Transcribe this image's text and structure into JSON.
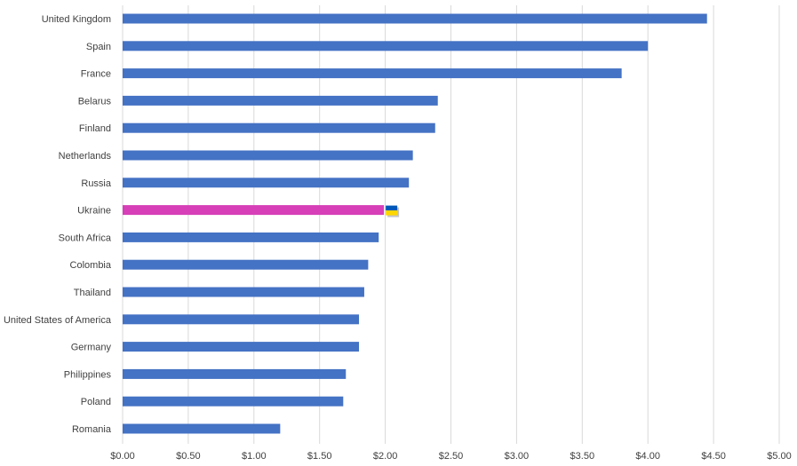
{
  "chart_data": {
    "type": "bar",
    "orientation": "horizontal",
    "categories": [
      "United Kingdom",
      "Spain",
      "France",
      "Belarus",
      "Finland",
      "Netherlands",
      "Russia",
      "Ukraine",
      "South Africa",
      "Colombia",
      "Thailand",
      "United States of America",
      "Germany",
      "Philippines",
      "Poland",
      "Romania"
    ],
    "values": [
      4.45,
      4.0,
      3.8,
      2.4,
      2.38,
      2.21,
      2.18,
      1.99,
      1.95,
      1.87,
      1.84,
      1.8,
      1.8,
      1.7,
      1.68,
      1.2
    ],
    "highlight_category": "Ukraine",
    "xlim": [
      0,
      5
    ],
    "ticks": [
      "$0.00",
      "$0.50",
      "$1.00",
      "$1.50",
      "$2.00",
      "$2.50",
      "$3.00",
      "$3.50",
      "$4.00",
      "$4.50",
      "$5.00"
    ],
    "tick_values": [
      0,
      0.5,
      1,
      1.5,
      2,
      2.5,
      3,
      3.5,
      4,
      4.5,
      5
    ],
    "grid": true,
    "legend": "none",
    "title": "",
    "xlabel": "",
    "ylabel": ""
  },
  "colors": {
    "bar": "#4472c4",
    "highlight": "#d63fb8",
    "flag_blue": "#0057b8",
    "flag_yellow": "#ffd700"
  },
  "icons": {
    "highlight_marker": "ukraine-flag-icon"
  }
}
